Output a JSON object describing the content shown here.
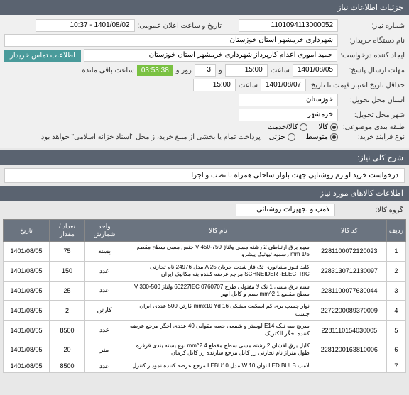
{
  "headers": {
    "main": "جزئیات اطلاعات نیاز",
    "needDesc": "شرح کلی نیاز:",
    "itemsInfo": "اطلاعات کالاهای مورد نیاز"
  },
  "labels": {
    "needNumber": "شماره نیاز:",
    "publicDateTime": "تاریخ و ساعت اعلان عمومی:",
    "deviceName": "نام دستگاه خریدار:",
    "requesterName": "ایجاد کننده درخواست:",
    "buyerContact": "اطلاعات تماس خریدار",
    "responseDeadline": "مهلت ارسال پاسخ:",
    "date": "تا تاریخ:",
    "time": "ساعت",
    "and": "و",
    "days": "روز و",
    "remaining": "ساعت باقی مانده",
    "validityDate": "حداقل تاریخ اعتبار قیمت تا تاریخ:",
    "province": "استان محل تحویل:",
    "city": "شهر محل تحویل:",
    "grouping": "طبقه بندی موضوعی:",
    "purchaseType": "نوع فرآیند خرید:",
    "productGroup": "گروه کالا:"
  },
  "values": {
    "needNumber": "1101094113000052",
    "publicDateTime": "1401/08/02 - 10:37",
    "deviceName": "شهرداری خرمشهر استان خوزستان",
    "requesterName": "حمید اموری اعدام کارپرداز شهرداری خرمشهر استان خوزستان",
    "responseDate": "1401/08/05",
    "responseTime": "15:00",
    "daysRemaining": "3",
    "timeRemaining": "03:53:38",
    "validityDate": "1401/08/07",
    "validityTime": "15:00",
    "province": "خوزستان",
    "city": "خرمشهر",
    "needDescription": "درخواست خرید لوازم روشنایی جهت بلوار ساحلی همراه با نصب و اجرا",
    "productGroup": "لامپ و تجهیزات روشنائی"
  },
  "radios": {
    "grouping": [
      {
        "label": "کالا",
        "selected": true
      },
      {
        "label": "کالا/خدمت",
        "selected": false
      }
    ],
    "purchaseType": [
      {
        "label": "متوسط",
        "selected": true
      },
      {
        "label": "جزئی",
        "selected": false
      }
    ]
  },
  "purchaseNote": "پرداخت تمام یا بخشی از مبلغ خرید،از محل \"اسناد خزانه اسلامی\" خواهد بود.",
  "tableHeaders": {
    "idx": "ردیف",
    "code": "کد کالا",
    "name": "نام کالا",
    "unit": "واحد شمارش",
    "qty": "تعداد / مقدار",
    "date": "تاریخ"
  },
  "items": [
    {
      "idx": "1",
      "code": "2281100072120023",
      "name": "سیم برق ارتباطی 2 رشته مسی ولتاژ V 450-750 جنس مسی سطح مقطع mm 1/5 رسمیه تیوتیک پیشرو",
      "unit": "بسته",
      "qty": "75",
      "date": "1401/08/05"
    },
    {
      "idx": "2",
      "code": "2283130712130097",
      "name": "کلید فیوز مینیاتوری تک فاز شدت جریان A 25 مدل 24976 نام تجارتی SCHNEIDER -ELECTRIC مرجع عرضه کننده بنه مکانیک ایران",
      "unit": "عدد",
      "qty": "150",
      "date": "1401/08/05"
    },
    {
      "idx": "3",
      "code": "2281100077630044",
      "name": "سیم برق مسی 1 تک لا مفتولی طرح 60227IEC 0760707 ولتاژ V 300-500 سطح مقطع 1 mm^2 سیم و کابل ابهر",
      "unit": "عدد",
      "qty": "25",
      "date": "1401/08/05"
    },
    {
      "idx": "4",
      "code": "2272200089370009",
      "name": "نوار چسب بری کم اسکیت مشکی mmx10 Yd 16 کارتن 500 عددی ایران چسب",
      "unit": "کارتن",
      "qty": "2",
      "date": "1401/08/05"
    },
    {
      "idx": "5",
      "code": "2281110154030005",
      "name": "سریچ سه تیکه E14 لوستر و شمعی جعبه مقوایی 40 عددی اخگر مرجع عرضه کننده اخگر الکتریک",
      "unit": "عدد",
      "qty": "8500",
      "date": "1401/08/05"
    },
    {
      "idx": "6",
      "code": "2281200163810006",
      "name": "کابل برق افشان 2 رشته مسی سطح مقطع mm^2 4 نوع بسته بندی قرقره طول متراژ نام تجارتی زر کابل مرجع سازنده زر کابل کرمان",
      "unit": "متر",
      "qty": "20",
      "date": "1401/08/05"
    },
    {
      "idx": "7",
      "code": "",
      "name": "لامپ LED BULB توان W 10 مدل LEBU10 مرجع عرضه کننده نمودار کنترل",
      "unit": "عدد",
      "qty": "8500",
      "date": "1401/08/05"
    }
  ]
}
